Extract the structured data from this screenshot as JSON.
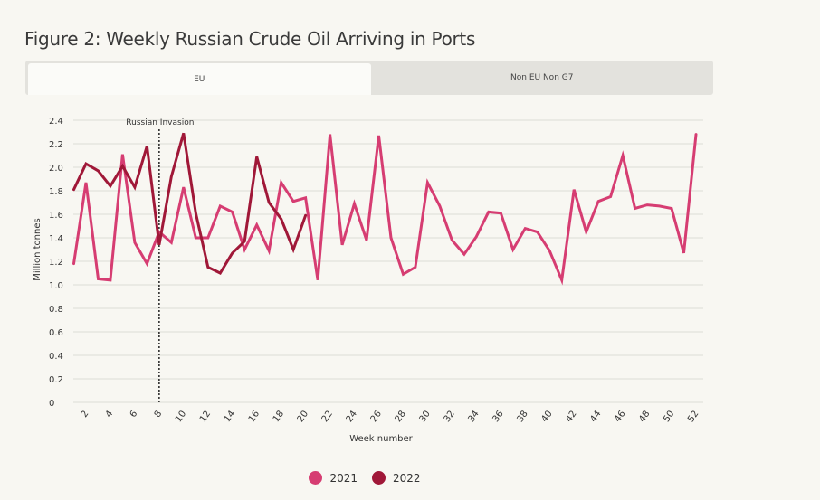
{
  "title": "Figure 2: Weekly Russian Crude Oil Arriving in Ports",
  "tabs": [
    {
      "label": "EU",
      "active": true
    },
    {
      "label": "Non EU Non G7",
      "active": false
    }
  ],
  "colors": {
    "series_2021": "#d63d72",
    "series_2022": "#a01838",
    "grid": "#dddcd6"
  },
  "chart_data": {
    "type": "line",
    "xlabel": "Week number",
    "ylabel": "Million tonnes",
    "xlim": [
      1,
      52
    ],
    "ylim": [
      0,
      2.4
    ],
    "xticks": [
      2,
      4,
      6,
      8,
      10,
      12,
      14,
      16,
      18,
      20,
      22,
      24,
      26,
      28,
      30,
      32,
      34,
      36,
      38,
      40,
      42,
      44,
      46,
      48,
      50,
      52
    ],
    "yticks": [
      0,
      0.2,
      0.4,
      0.6,
      0.8,
      1.0,
      1.2,
      1.4,
      1.6,
      1.8,
      2.0,
      2.2,
      2.4
    ],
    "ytick_labels": [
      "0",
      "0.2",
      "0.4",
      "0.6",
      "0.8",
      "1.0",
      "1.2",
      "1.4",
      "1.6",
      "1.8",
      "2.0",
      "2.2",
      "2.4"
    ],
    "grid": true,
    "annotation": {
      "label": "Russian Invasion",
      "x": 8
    },
    "series": [
      {
        "name": "2021",
        "x": [
          1,
          2,
          3,
          4,
          5,
          6,
          7,
          8,
          9,
          10,
          11,
          12,
          13,
          14,
          15,
          16,
          17,
          18,
          19,
          20,
          21,
          22,
          23,
          24,
          25,
          26,
          27,
          28,
          29,
          30,
          31,
          32,
          33,
          34,
          35,
          36,
          37,
          38,
          39,
          40,
          41,
          42,
          43,
          44,
          45,
          46,
          47,
          48,
          49,
          50,
          51,
          52
        ],
        "values": [
          1.18,
          1.87,
          1.05,
          1.04,
          2.11,
          1.36,
          1.18,
          1.45,
          1.36,
          1.83,
          1.4,
          1.4,
          1.67,
          1.62,
          1.3,
          1.51,
          1.29,
          1.87,
          1.71,
          1.74,
          1.04,
          2.28,
          1.34,
          1.69,
          1.38,
          2.27,
          1.4,
          1.09,
          1.15,
          1.87,
          1.67,
          1.38,
          1.26,
          1.41,
          1.62,
          1.61,
          1.3,
          1.48,
          1.45,
          1.29,
          1.04,
          1.81,
          1.45,
          1.71,
          1.75,
          2.1,
          1.65,
          1.68,
          1.67,
          1.65,
          1.27,
          2.28
        ]
      },
      {
        "name": "2022",
        "x": [
          1,
          2,
          3,
          4,
          5,
          6,
          7,
          8,
          9,
          10,
          11,
          12,
          13,
          14,
          15,
          16,
          17,
          18,
          19,
          20
        ],
        "values": [
          1.81,
          2.03,
          1.97,
          1.84,
          2.01,
          1.83,
          2.18,
          1.34,
          1.92,
          2.29,
          1.61,
          1.15,
          1.1,
          1.27,
          1.37,
          2.09,
          1.7,
          1.56,
          1.3,
          1.59
        ]
      }
    ]
  }
}
